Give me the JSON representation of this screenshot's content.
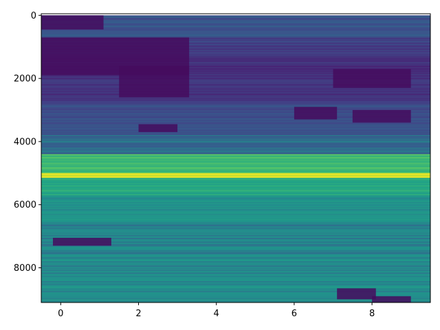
{
  "chart_data": {
    "type": "heatmap",
    "title": "",
    "xlabel": "",
    "ylabel": "",
    "xlim": [
      -0.5,
      9.5
    ],
    "ylim": [
      9100,
      -50
    ],
    "y_inverted": true,
    "colormap": "viridis",
    "colorbar": false,
    "grid": false,
    "x_ticks": [
      0,
      2,
      4,
      6,
      8
    ],
    "x_tick_labels": [
      "0",
      "2",
      "4",
      "6",
      "8"
    ],
    "y_ticks": [
      0,
      2000,
      4000,
      6000,
      8000
    ],
    "y_tick_labels": [
      "0",
      "2000",
      "4000",
      "6000",
      "8000"
    ],
    "row_count": 9100,
    "column_count": 10,
    "columns": [
      0,
      1,
      2,
      3,
      4,
      5,
      6,
      7,
      8,
      9
    ],
    "row_band_levels": [
      {
        "row_range": [
          0,
          700
        ],
        "level": 0.33
      },
      {
        "row_range": [
          700,
          1300
        ],
        "level": 0.22
      },
      {
        "row_range": [
          1300,
          2100
        ],
        "level": 0.18
      },
      {
        "row_range": [
          2100,
          2800
        ],
        "level": 0.2
      },
      {
        "row_range": [
          2800,
          3800
        ],
        "level": 0.3
      },
      {
        "row_range": [
          3800,
          4400
        ],
        "level": 0.42
      },
      {
        "row_range": [
          4400,
          5000
        ],
        "level": 0.68
      },
      {
        "row_range": [
          5000,
          5150
        ],
        "level": 0.95
      },
      {
        "row_range": [
          5150,
          5700
        ],
        "level": 0.62
      },
      {
        "row_range": [
          5700,
          6600
        ],
        "level": 0.52
      },
      {
        "row_range": [
          6600,
          8500
        ],
        "level": 0.48
      },
      {
        "row_range": [
          8500,
          9100
        ],
        "level": 0.5
      }
    ],
    "dark_regions": [
      {
        "row_range": [
          0,
          450
        ],
        "column_range": [
          0,
          1.6
        ]
      },
      {
        "row_range": [
          700,
          1900
        ],
        "column_range": [
          0,
          3.8
        ]
      },
      {
        "row_range": [
          1600,
          2600
        ],
        "column_range": [
          2,
          3.8
        ]
      },
      {
        "row_range": [
          1700,
          2300
        ],
        "column_range": [
          7.5,
          9.5
        ]
      },
      {
        "row_range": [
          2900,
          3300
        ],
        "column_range": [
          6.5,
          7.6
        ]
      },
      {
        "row_range": [
          3000,
          3400
        ],
        "column_range": [
          8,
          9.5
        ]
      },
      {
        "row_range": [
          3450,
          3700
        ],
        "column_range": [
          2.5,
          3.5
        ]
      },
      {
        "row_range": [
          8650,
          9000
        ],
        "column_range": [
          7.6,
          8.6
        ]
      },
      {
        "row_range": [
          8900,
          9100
        ],
        "column_range": [
          8.5,
          9.5
        ]
      },
      {
        "row_range": [
          7050,
          7300
        ],
        "column_range": [
          0.3,
          1.8
        ]
      }
    ]
  }
}
